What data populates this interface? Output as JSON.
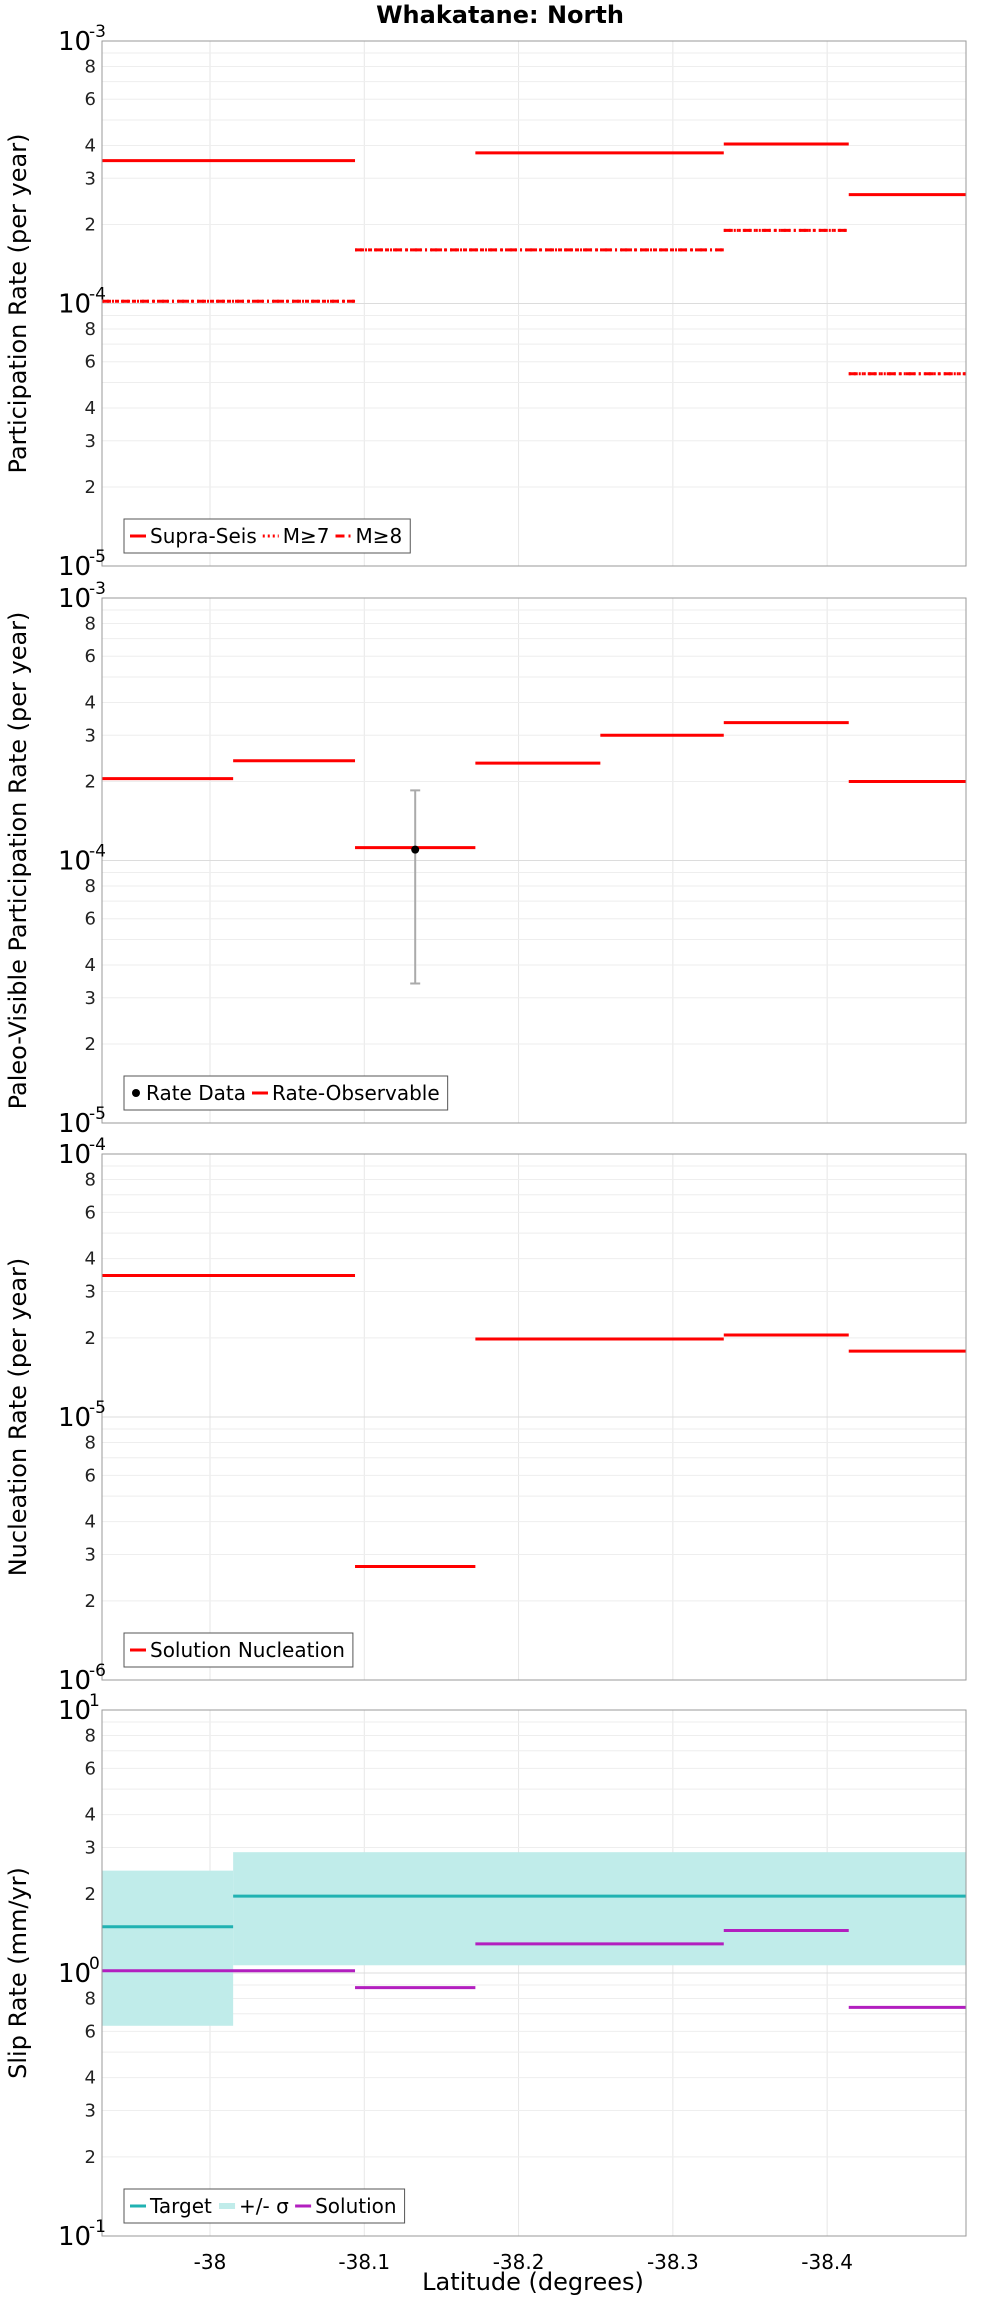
{
  "title": "Whakatane: North",
  "xlabel": "Latitude (degrees)",
  "x_ticks": [
    -38,
    -38.1,
    -38.2,
    -38.3,
    -38.4
  ],
  "x_tick_labels": [
    "-38",
    "-38.1",
    "-38.2",
    "-38.3",
    "-38.4"
  ],
  "xlim": [
    -37.93,
    -38.49
  ],
  "chart_data": [
    {
      "type": "line",
      "id": "participation",
      "ylabel": "Participation Rate (per year)",
      "ylim_exp": [
        -5,
        -3
      ],
      "decade_labels": [
        {
          "base": "10",
          "exp": "-3"
        },
        {
          "base": "10",
          "exp": "-4"
        },
        {
          "base": "10",
          "exp": "-5"
        }
      ],
      "minor_labels": [
        "2",
        "3",
        "4",
        "6",
        "8"
      ],
      "series": [
        {
          "name": "Supra-Seis",
          "color": "#ff0000",
          "style": "solid",
          "segments": [
            {
              "x0": -37.93,
              "x1": -38.094,
              "y": 0.00035
            },
            {
              "x0": -38.172,
              "x1": -38.333,
              "y": 0.000375
            },
            {
              "x0": -38.333,
              "x1": -38.414,
              "y": 0.000405
            },
            {
              "x0": -38.414,
              "x1": -38.49,
              "y": 0.00026
            }
          ]
        },
        {
          "name": "M≥7",
          "color": "#ff0000",
          "style": "dotted",
          "segments": [
            {
              "x0": -37.93,
              "x1": -38.094,
              "y": 0.000102
            },
            {
              "x0": -38.094,
              "x1": -38.333,
              "y": 0.00016
            },
            {
              "x0": -38.333,
              "x1": -38.414,
              "y": 0.00019
            },
            {
              "x0": -38.414,
              "x1": -38.49,
              "y": 5.4e-05
            }
          ]
        },
        {
          "name": "M≥8",
          "color": "#ff0000",
          "style": "dashdot",
          "segments": [
            {
              "x0": -37.93,
              "x1": -38.094,
              "y": 0.000102
            },
            {
              "x0": -38.094,
              "x1": -38.333,
              "y": 0.00016
            },
            {
              "x0": -38.333,
              "x1": -38.414,
              "y": 0.00019
            },
            {
              "x0": -38.414,
              "x1": -38.49,
              "y": 5.4e-05
            }
          ]
        }
      ],
      "legend": [
        {
          "label": "Supra-Seis",
          "kind": "solid",
          "color": "#ff0000"
        },
        {
          "label": "M≥7",
          "kind": "dotted",
          "color": "#ff0000"
        },
        {
          "label": "M≥8",
          "kind": "dashdot",
          "color": "#ff0000"
        }
      ],
      "legend_position": "bottom-left"
    },
    {
      "type": "line",
      "id": "paleo",
      "ylabel": "Paleo-Visible Participation Rate (per year)",
      "ylim_exp": [
        -5,
        -3
      ],
      "decade_labels": [
        {
          "base": "10",
          "exp": "-3"
        },
        {
          "base": "10",
          "exp": "-4"
        },
        {
          "base": "10",
          "exp": "-5"
        }
      ],
      "minor_labels": [
        "2",
        "3",
        "4",
        "6",
        "8"
      ],
      "series": [
        {
          "name": "Rate-Observable",
          "color": "#ff0000",
          "style": "solid",
          "segments": [
            {
              "x0": -37.93,
              "x1": -38.015,
              "y": 0.000205
            },
            {
              "x0": -38.015,
              "x1": -38.094,
              "y": 0.00024
            },
            {
              "x0": -38.094,
              "x1": -38.172,
              "y": 0.000112
            },
            {
              "x0": -38.172,
              "x1": -38.253,
              "y": 0.000235
            },
            {
              "x0": -38.253,
              "x1": -38.333,
              "y": 0.0003
            },
            {
              "x0": -38.333,
              "x1": -38.414,
              "y": 0.000335
            },
            {
              "x0": -38.414,
              "x1": -38.49,
              "y": 0.0002
            }
          ]
        }
      ],
      "points": [
        {
          "name": "Rate Data",
          "x": -38.133,
          "y": 0.00011,
          "lo": 3.4e-05,
          "hi": 0.000185
        }
      ],
      "legend": [
        {
          "label": "Rate Data",
          "kind": "dot",
          "color": "#000000"
        },
        {
          "label": "Rate-Observable",
          "kind": "solid",
          "color": "#ff0000"
        }
      ],
      "legend_position": "bottom-left"
    },
    {
      "type": "line",
      "id": "nucleation",
      "ylabel": "Nucleation Rate (per year)",
      "ylim_exp": [
        -6,
        -4
      ],
      "decade_labels": [
        {
          "base": "10",
          "exp": "-4"
        },
        {
          "base": "10",
          "exp": "-5"
        },
        {
          "base": "10",
          "exp": "-6"
        }
      ],
      "minor_labels": [
        "2",
        "3",
        "4",
        "6",
        "8"
      ],
      "series": [
        {
          "name": "Solution Nucleation",
          "color": "#ff0000",
          "style": "solid",
          "segments": [
            {
              "x0": -37.93,
              "x1": -38.094,
              "y": 3.45e-05
            },
            {
              "x0": -38.094,
              "x1": -38.172,
              "y": 2.7e-06
            },
            {
              "x0": -38.172,
              "x1": -38.333,
              "y": 1.98e-05
            },
            {
              "x0": -38.333,
              "x1": -38.414,
              "y": 2.05e-05
            },
            {
              "x0": -38.414,
              "x1": -38.49,
              "y": 1.78e-05
            }
          ]
        }
      ],
      "legend": [
        {
          "label": "Solution Nucleation",
          "kind": "solid",
          "color": "#ff0000"
        }
      ],
      "legend_position": "bottom-left"
    },
    {
      "type": "line",
      "id": "slip",
      "ylabel": "Slip Rate (mm/yr)",
      "ylim_exp": [
        -1,
        1
      ],
      "decade_labels": [
        {
          "base": "10",
          "exp": "1"
        },
        {
          "base": "10",
          "exp": "0"
        },
        {
          "base": "10",
          "exp": "-1"
        }
      ],
      "minor_labels": [
        "2",
        "3",
        "4",
        "6",
        "8"
      ],
      "bands": [
        {
          "name": "+/- σ",
          "color": "#c0ecea",
          "x0": -37.93,
          "x1": -38.015,
          "lo": 0.63,
          "hi": 2.45
        },
        {
          "name": "+/- σ",
          "color": "#c0ecea",
          "x0": -38.015,
          "x1": -38.49,
          "lo": 1.07,
          "hi": 2.88
        }
      ],
      "series": [
        {
          "name": "Target",
          "color": "#20b2b2",
          "style": "solid",
          "segments": [
            {
              "x0": -37.93,
              "x1": -38.015,
              "y": 1.5
            },
            {
              "x0": -38.015,
              "x1": -38.49,
              "y": 1.96
            }
          ]
        },
        {
          "name": "Solution",
          "color": "#b21fbf",
          "style": "solid",
          "segments": [
            {
              "x0": -37.93,
              "x1": -38.094,
              "y": 1.02
            },
            {
              "x0": -38.094,
              "x1": -38.172,
              "y": 0.88
            },
            {
              "x0": -38.172,
              "x1": -38.333,
              "y": 1.29
            },
            {
              "x0": -38.333,
              "x1": -38.414,
              "y": 1.45
            },
            {
              "x0": -38.414,
              "x1": -38.49,
              "y": 0.74
            }
          ]
        }
      ],
      "legend": [
        {
          "label": "Target",
          "kind": "solid",
          "color": "#20b2b2"
        },
        {
          "label": "+/- σ",
          "kind": "band",
          "color": "#c0ecea"
        },
        {
          "label": "Solution",
          "kind": "solid",
          "color": "#b21fbf"
        }
      ],
      "legend_position": "bottom-left"
    }
  ]
}
